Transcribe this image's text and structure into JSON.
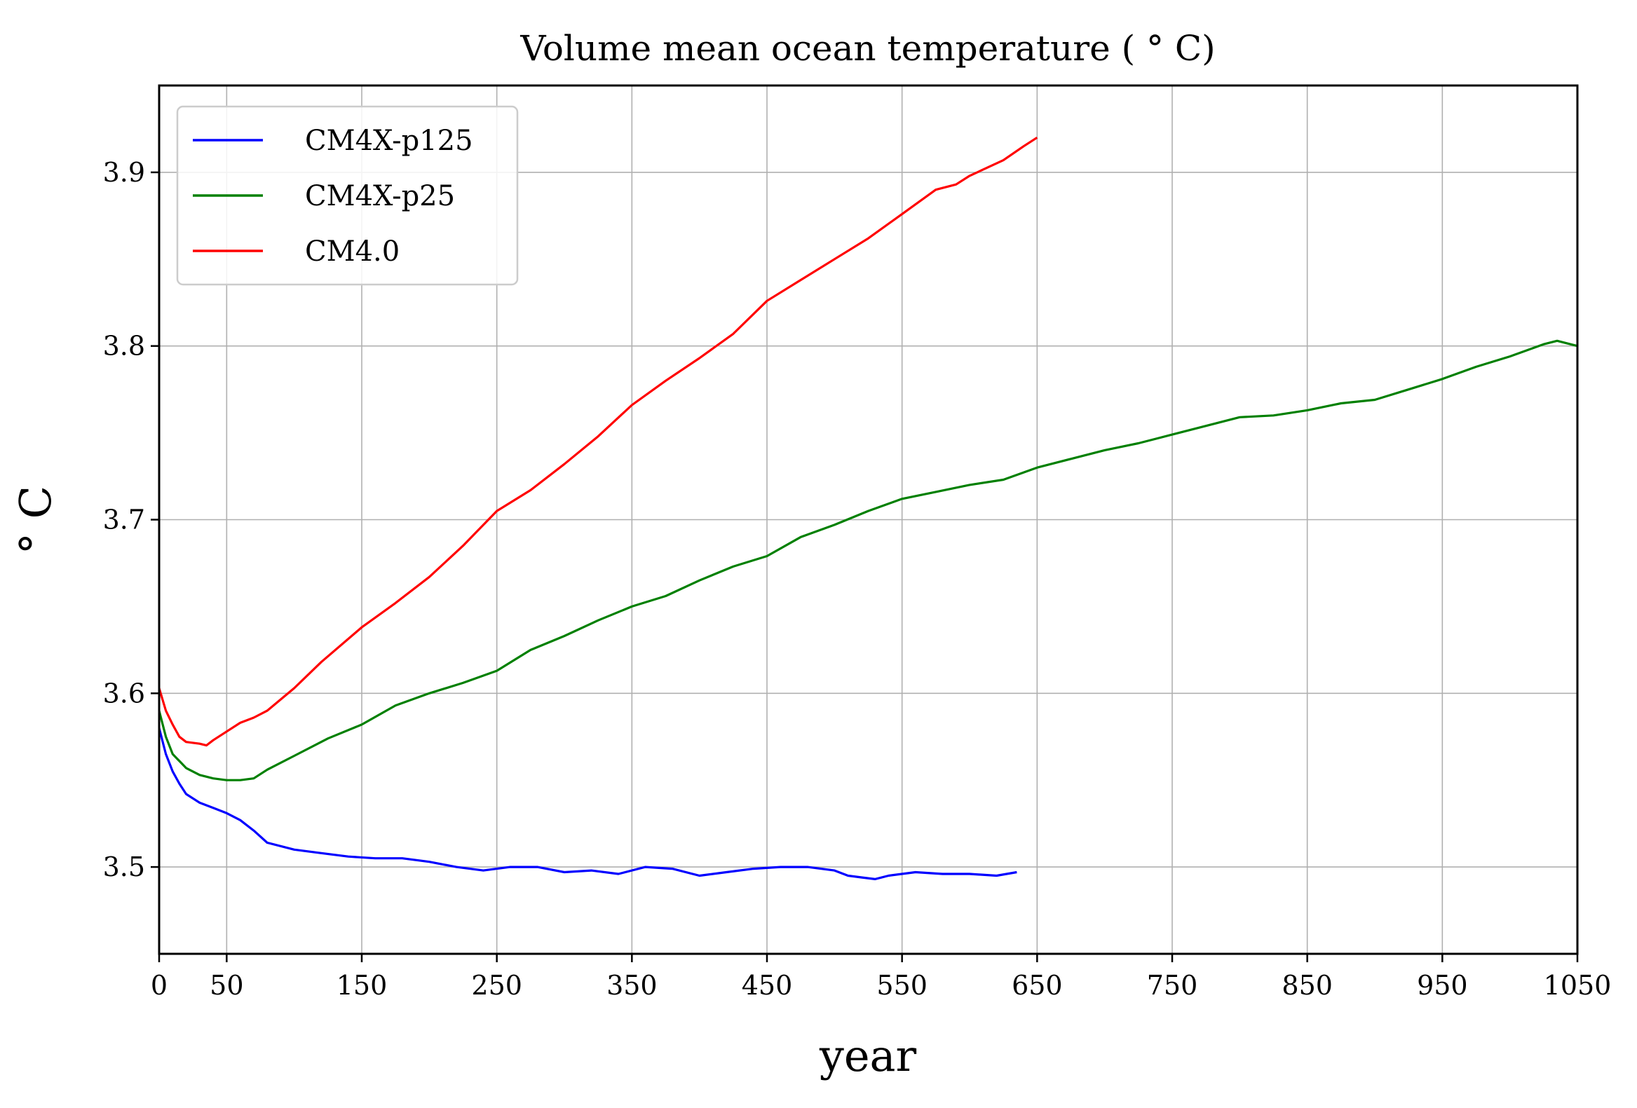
{
  "chart_data": {
    "type": "line",
    "title": "Volume mean ocean temperature ($^\\circ$C)",
    "title_display": "Volume mean ocean temperature ( ° C)",
    "xlabel": "year",
    "ylabel": "° C",
    "xlim": [
      0,
      1050
    ],
    "ylim": [
      3.45,
      3.95
    ],
    "xticks": [
      0,
      50,
      150,
      250,
      350,
      450,
      550,
      650,
      750,
      850,
      950,
      1050
    ],
    "xtick_labels": [
      "0",
      "50",
      "150",
      "250",
      "350",
      "450",
      "550",
      "650",
      "750",
      "850",
      "950",
      "1050"
    ],
    "yticks": [
      3.5,
      3.6,
      3.7,
      3.8,
      3.9
    ],
    "ytick_labels": [
      "3.5",
      "3.6",
      "3.7",
      "3.8",
      "3.9"
    ],
    "grid": true,
    "legend_position": "top-left",
    "series": [
      {
        "name": "CM4X-p125",
        "color": "#0000ff",
        "x": [
          0,
          5,
          10,
          15,
          20,
          30,
          40,
          50,
          60,
          70,
          80,
          100,
          120,
          140,
          160,
          180,
          200,
          220,
          240,
          260,
          280,
          300,
          320,
          340,
          360,
          380,
          400,
          420,
          440,
          460,
          480,
          500,
          510,
          520,
          530,
          540,
          560,
          580,
          600,
          620,
          635
        ],
        "y": [
          3.58,
          3.565,
          3.555,
          3.548,
          3.542,
          3.537,
          3.534,
          3.531,
          3.527,
          3.521,
          3.514,
          3.51,
          3.508,
          3.506,
          3.505,
          3.505,
          3.503,
          3.5,
          3.498,
          3.5,
          3.5,
          3.497,
          3.498,
          3.496,
          3.5,
          3.499,
          3.495,
          3.497,
          3.499,
          3.5,
          3.5,
          3.498,
          3.495,
          3.494,
          3.493,
          3.495,
          3.497,
          3.496,
          3.496,
          3.495,
          3.497
        ]
      },
      {
        "name": "CM4X-p25",
        "color": "#008000",
        "x": [
          0,
          5,
          10,
          20,
          30,
          40,
          50,
          60,
          70,
          80,
          100,
          125,
          150,
          175,
          200,
          225,
          250,
          275,
          300,
          325,
          350,
          375,
          400,
          425,
          450,
          475,
          500,
          525,
          550,
          575,
          600,
          625,
          650,
          675,
          700,
          725,
          750,
          775,
          800,
          825,
          850,
          875,
          900,
          925,
          950,
          975,
          1000,
          1025,
          1035,
          1050
        ],
        "y": [
          3.59,
          3.575,
          3.565,
          3.557,
          3.553,
          3.551,
          3.55,
          3.55,
          3.551,
          3.556,
          3.564,
          3.574,
          3.582,
          3.593,
          3.6,
          3.606,
          3.613,
          3.625,
          3.633,
          3.642,
          3.65,
          3.656,
          3.665,
          3.673,
          3.679,
          3.69,
          3.697,
          3.705,
          3.712,
          3.716,
          3.72,
          3.723,
          3.73,
          3.735,
          3.74,
          3.744,
          3.749,
          3.754,
          3.759,
          3.76,
          3.763,
          3.767,
          3.769,
          3.775,
          3.781,
          3.788,
          3.794,
          3.801,
          3.803,
          3.8
        ]
      },
      {
        "name": "CM4.0",
        "color": "#ff0000",
        "x": [
          0,
          5,
          10,
          15,
          20,
          30,
          35,
          40,
          50,
          60,
          70,
          80,
          100,
          120,
          150,
          175,
          200,
          225,
          250,
          275,
          300,
          325,
          350,
          375,
          400,
          425,
          450,
          475,
          500,
          525,
          550,
          575,
          590,
          600,
          625,
          640,
          650
        ],
        "y": [
          3.603,
          3.59,
          3.582,
          3.575,
          3.572,
          3.571,
          3.57,
          3.573,
          3.578,
          3.583,
          3.586,
          3.59,
          3.603,
          3.618,
          3.638,
          3.652,
          3.667,
          3.685,
          3.705,
          3.717,
          3.732,
          3.748,
          3.766,
          3.78,
          3.793,
          3.807,
          3.826,
          3.838,
          3.85,
          3.862,
          3.876,
          3.89,
          3.893,
          3.898,
          3.907,
          3.915,
          3.92
        ]
      }
    ]
  }
}
